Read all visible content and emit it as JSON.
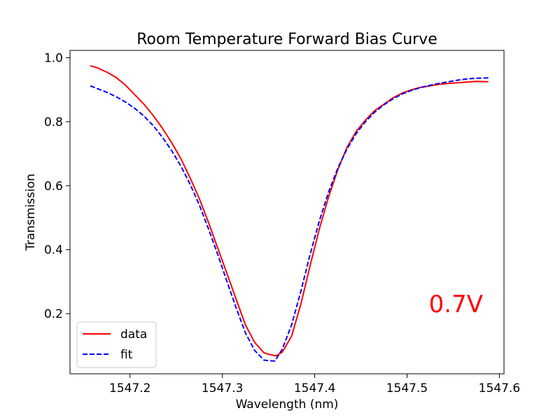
{
  "chart_data": {
    "type": "line",
    "title": "Room Temperature Forward Bias Curve",
    "xlabel": "Wavelength (nm)",
    "ylabel": "Transmission",
    "xlim": [
      1547.135,
      1547.605
    ],
    "ylim": [
      0.012,
      1.023
    ],
    "xticks": [
      1547.2,
      1547.3,
      1547.4,
      1547.5,
      1547.6
    ],
    "xtick_labels": [
      "1547.2",
      "1547.3",
      "1547.4",
      "1547.5",
      "1547.6"
    ],
    "yticks": [
      0.2,
      0.4,
      0.6,
      0.8,
      1.0
    ],
    "ytick_labels": [
      "0.2",
      "0.4",
      "0.6",
      "0.8",
      "1.0"
    ],
    "grid": false,
    "legend_position": "lower-left",
    "annotation": {
      "text": "0.7V",
      "color": "#ff0000"
    },
    "series": [
      {
        "name": "data",
        "color": "#ff0000",
        "style": "solid",
        "x": [
          1547.157,
          1547.165,
          1547.175,
          1547.185,
          1547.195,
          1547.205,
          1547.215,
          1547.225,
          1547.235,
          1547.245,
          1547.255,
          1547.265,
          1547.275,
          1547.285,
          1547.295,
          1547.305,
          1547.315,
          1547.325,
          1547.335,
          1547.345,
          1547.35,
          1547.358,
          1547.365,
          1547.375,
          1547.385,
          1547.395,
          1547.405,
          1547.415,
          1547.425,
          1547.435,
          1547.445,
          1547.455,
          1547.465,
          1547.475,
          1547.485,
          1547.495,
          1547.505,
          1547.515,
          1547.525,
          1547.535,
          1547.545,
          1547.555,
          1547.565,
          1547.575,
          1547.588
        ],
        "y": [
          0.975,
          0.968,
          0.955,
          0.938,
          0.915,
          0.885,
          0.855,
          0.82,
          0.78,
          0.735,
          0.685,
          0.625,
          0.56,
          0.485,
          0.405,
          0.325,
          0.245,
          0.165,
          0.11,
          0.078,
          0.073,
          0.068,
          0.08,
          0.13,
          0.23,
          0.35,
          0.465,
          0.565,
          0.65,
          0.72,
          0.77,
          0.805,
          0.835,
          0.855,
          0.875,
          0.89,
          0.9,
          0.908,
          0.912,
          0.917,
          0.92,
          0.922,
          0.924,
          0.926,
          0.925
        ]
      },
      {
        "name": "fit",
        "color": "#0000ff",
        "style": "dashed",
        "x": [
          1547.157,
          1547.165,
          1547.175,
          1547.185,
          1547.195,
          1547.205,
          1547.215,
          1547.225,
          1547.235,
          1547.245,
          1547.255,
          1547.265,
          1547.275,
          1547.285,
          1547.295,
          1547.305,
          1547.315,
          1547.325,
          1547.335,
          1547.345,
          1547.35,
          1547.357,
          1547.365,
          1547.375,
          1547.385,
          1547.395,
          1547.405,
          1547.415,
          1547.425,
          1547.435,
          1547.445,
          1547.455,
          1547.465,
          1547.475,
          1547.485,
          1547.495,
          1547.505,
          1547.515,
          1547.525,
          1547.535,
          1547.545,
          1547.555,
          1547.565,
          1547.575,
          1547.588
        ],
        "y": [
          0.912,
          0.903,
          0.892,
          0.878,
          0.862,
          0.842,
          0.818,
          0.788,
          0.752,
          0.71,
          0.662,
          0.605,
          0.54,
          0.465,
          0.385,
          0.3,
          0.218,
          0.14,
          0.085,
          0.055,
          0.053,
          0.052,
          0.09,
          0.165,
          0.27,
          0.385,
          0.49,
          0.58,
          0.655,
          0.715,
          0.763,
          0.8,
          0.83,
          0.853,
          0.872,
          0.887,
          0.898,
          0.907,
          0.914,
          0.92,
          0.925,
          0.93,
          0.934,
          0.936,
          0.937
        ]
      }
    ]
  }
}
